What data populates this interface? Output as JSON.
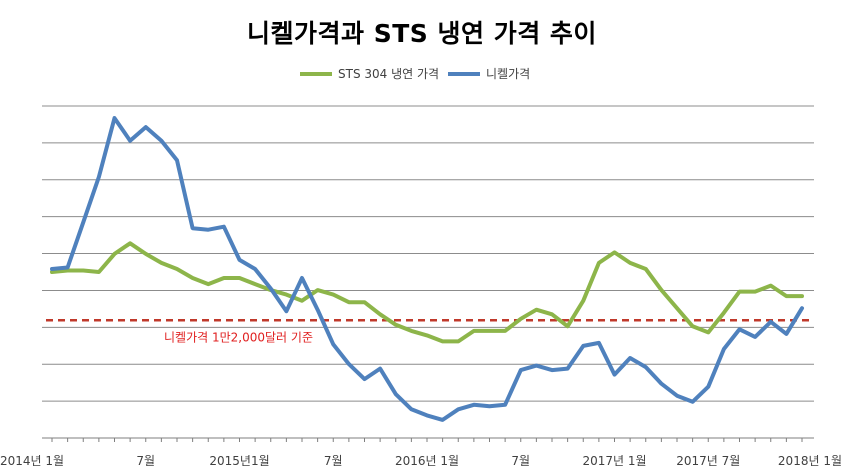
{
  "chart_data": {
    "type": "line",
    "title": "니켈가격과 STS 냉연 가격 추이",
    "xlabel": "",
    "ylabel": "",
    "grid": true,
    "legend_position": "top",
    "x_tick_labels": [
      "2014년 1월",
      "7월",
      "2015년1월",
      "7월",
      "2016년 1월",
      "7월",
      "2017년 1월",
      "2017년 7월",
      "2018년 1월"
    ],
    "x_tick_index": [
      0,
      6,
      12,
      18,
      24,
      30,
      36,
      42,
      48
    ],
    "y_scale": {
      "min": 0,
      "max": 11
    },
    "series": [
      {
        "name": "STS 304 냉연 가격",
        "color": "#8db54a",
        "values": [
          5.5,
          5.55,
          5.55,
          5.5,
          6.1,
          6.45,
          6.1,
          5.8,
          5.6,
          5.3,
          5.1,
          5.3,
          5.3,
          5.1,
          4.9,
          4.75,
          4.55,
          4.9,
          4.75,
          4.5,
          4.5,
          4.1,
          3.75,
          3.55,
          3.4,
          3.2,
          3.2,
          3.55,
          3.55,
          3.55,
          3.95,
          4.25,
          4.1,
          3.7,
          4.55,
          5.8,
          6.15,
          5.8,
          5.6,
          4.9,
          4.3,
          3.7,
          3.5,
          4.15,
          4.85,
          4.85,
          5.05,
          4.7,
          4.7
        ]
      },
      {
        "name": "니켈가격",
        "color": "#4f81bd",
        "values": [
          5.6,
          5.65,
          7.15,
          8.65,
          10.6,
          9.85,
          10.3,
          9.85,
          9.2,
          6.95,
          6.9,
          7.0,
          5.9,
          5.6,
          4.95,
          4.2,
          5.3,
          4.25,
          3.1,
          2.45,
          1.95,
          2.3,
          1.45,
          0.95,
          0.75,
          0.6,
          0.95,
          1.1,
          1.05,
          1.1,
          2.25,
          2.4,
          2.25,
          2.3,
          3.05,
          3.15,
          2.1,
          2.65,
          2.35,
          1.8,
          1.4,
          1.2,
          1.7,
          2.95,
          3.6,
          3.35,
          3.85,
          3.45,
          4.3
        ]
      }
    ],
    "reference_line": {
      "label": "니켈가격 1만2,000달러 기준",
      "value": 3.9,
      "color": "#c0392b",
      "style": "dashed"
    }
  }
}
